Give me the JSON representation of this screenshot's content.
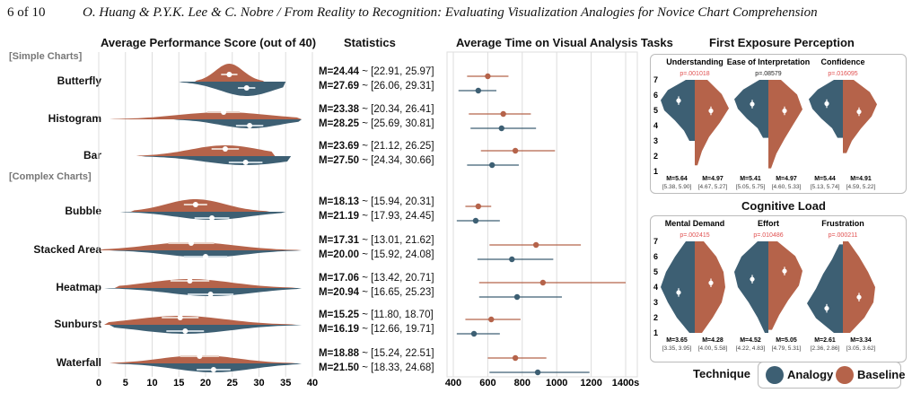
{
  "header": {
    "page": "6 of 10",
    "title": "O. Huang & P.Y.K. Lee & C. Nobre / From Reality to Recognition: Evaluating Visualization Analogies for Novice Chart Comprehension"
  },
  "colors": {
    "analogy": "#3d5f73",
    "baseline": "#b5634a"
  },
  "legend": {
    "title": "Technique",
    "analogy": "Analogy",
    "baseline": "Baseline"
  },
  "stats_title": "Statistics",
  "groups": {
    "simple": "[Simple Charts]",
    "complex": "[Complex Charts]"
  },
  "chart_data": [
    {
      "type": "violin",
      "title": "Average Performance Score (out of 40)",
      "xlim": [
        0,
        40
      ],
      "xticks": [
        "0",
        "5",
        "10",
        "15",
        "20",
        "25",
        "30",
        "35",
        "40"
      ],
      "categories": [
        "Butterfly",
        "Histogram",
        "Bar",
        "Bubble",
        "Stacked Area",
        "Heatmap",
        "Sunburst",
        "Waterfall"
      ],
      "series": [
        {
          "name": "Baseline",
          "means": [
            24.44,
            23.38,
            23.69,
            18.13,
            17.31,
            17.06,
            15.25,
            18.88
          ]
        },
        {
          "name": "Analogy",
          "means": [
            27.69,
            28.25,
            27.5,
            21.19,
            20.0,
            20.94,
            16.19,
            21.5
          ]
        }
      ],
      "stats": [
        {
          "b": "M=24.44",
          "bci": "[22.91, 25.97]",
          "a": "M=27.69",
          "aci": "[26.06, 29.31]"
        },
        {
          "b": "M=23.38",
          "bci": "[20.34, 26.41]",
          "a": "M=28.25",
          "aci": "[25.69, 30.81]"
        },
        {
          "b": "M=23.69",
          "bci": "[21.12, 26.25]",
          "a": "M=27.50",
          "aci": "[24.34, 30.66]"
        },
        {
          "b": "M=18.13",
          "bci": "[15.94, 20.31]",
          "a": "M=21.19",
          "aci": "[17.93, 24.45]"
        },
        {
          "b": "M=17.31",
          "bci": "[13.01, 21.62]",
          "a": "M=20.00",
          "aci": "[15.92, 24.08]"
        },
        {
          "b": "M=17.06",
          "bci": "[13.42, 20.71]",
          "a": "M=20.94",
          "aci": "[16.65, 25.23]"
        },
        {
          "b": "M=15.25",
          "bci": "[11.80, 18.70]",
          "a": "M=16.19",
          "aci": "[12.66, 19.71]"
        },
        {
          "b": "M=18.88",
          "bci": "[15.24, 22.51]",
          "a": "M=21.50",
          "aci": "[18.33, 24.68]"
        }
      ]
    },
    {
      "type": "errorbar",
      "title": "Average Time on Visual Analysis Tasks",
      "xlim": [
        300,
        1400
      ],
      "xticks": [
        "400",
        "600",
        "800",
        "1000",
        "1200",
        "1400s"
      ],
      "categories": [
        "Butterfly",
        "Histogram",
        "Bar",
        "Bubble",
        "Stacked Area",
        "Heatmap",
        "Sunburst",
        "Waterfall"
      ],
      "series": [
        {
          "name": "Baseline",
          "mean": [
            600,
            690,
            760,
            545,
            880,
            920,
            620,
            760
          ],
          "lo": [
            480,
            490,
            560,
            470,
            610,
            550,
            470,
            600
          ],
          "hi": [
            720,
            850,
            990,
            620,
            1140,
            1400,
            790,
            940
          ]
        },
        {
          "name": "Analogy",
          "mean": [
            545,
            680,
            625,
            530,
            740,
            770,
            520,
            890
          ],
          "lo": [
            430,
            500,
            480,
            420,
            540,
            550,
            420,
            610
          ],
          "hi": [
            650,
            880,
            780,
            670,
            980,
            1030,
            670,
            1190
          ]
        }
      ]
    },
    {
      "type": "split-violin",
      "title": "First Exposure Perception",
      "ylim": [
        1,
        7
      ],
      "yticks": [
        "1",
        "2",
        "3",
        "4",
        "5",
        "6",
        "7"
      ],
      "panels": [
        {
          "label": "Understanding",
          "p": "p=.001018",
          "p_color": "#e05050",
          "a_mean": 5.64,
          "a_ci": "[5.38, 5.90]",
          "b_mean": 4.97,
          "b_ci": "[4.67, 5.27]",
          "a_stat": "M=5.64",
          "b_stat": "M=4.97"
        },
        {
          "label": "Ease of Interpretation",
          "p": "p=.08579",
          "p_color": "#222222",
          "a_mean": 5.41,
          "a_ci": "[5.05, 5.75]",
          "b_mean": 4.97,
          "b_ci": "[4.60, 5.33]",
          "a_stat": "M=5.41",
          "b_stat": "M=4.97"
        },
        {
          "label": "Confidence",
          "p": "p=.016095",
          "p_color": "#e05050",
          "a_mean": 5.44,
          "a_ci": "[5.13, 5.74]",
          "b_mean": 4.91,
          "b_ci": "[4.59, 5.22]",
          "a_stat": "M=5.44",
          "b_stat": "M=4.91"
        }
      ]
    },
    {
      "type": "split-violin",
      "title": "Cognitive Load",
      "ylim": [
        1,
        7
      ],
      "yticks": [
        "1",
        "2",
        "3",
        "4",
        "5",
        "6",
        "7"
      ],
      "panels": [
        {
          "label": "Mental Demand",
          "p": "p=.002415",
          "p_color": "#e05050",
          "a_mean": 3.65,
          "a_ci": "[3.35, 3.95]",
          "b_mean": 4.28,
          "b_ci": "[4.00, 5.58]",
          "a_stat": "M=3.65",
          "b_stat": "M=4.28"
        },
        {
          "label": "Effort",
          "p": "p=.010486",
          "p_color": "#e05050",
          "a_mean": 4.52,
          "a_ci": "[4.22, 4.83]",
          "b_mean": 5.05,
          "b_ci": "[4.79, 5.31]",
          "a_stat": "M=4.52",
          "b_stat": "M=5.05"
        },
        {
          "label": "Frustration",
          "p": "p=.000211",
          "p_color": "#e05050",
          "a_mean": 2.61,
          "a_ci": "[2.36, 2.86]",
          "b_mean": 3.34,
          "b_ci": "[3.05, 3.62]",
          "a_stat": "M=2.61",
          "b_stat": "M=3.34"
        }
      ]
    }
  ]
}
